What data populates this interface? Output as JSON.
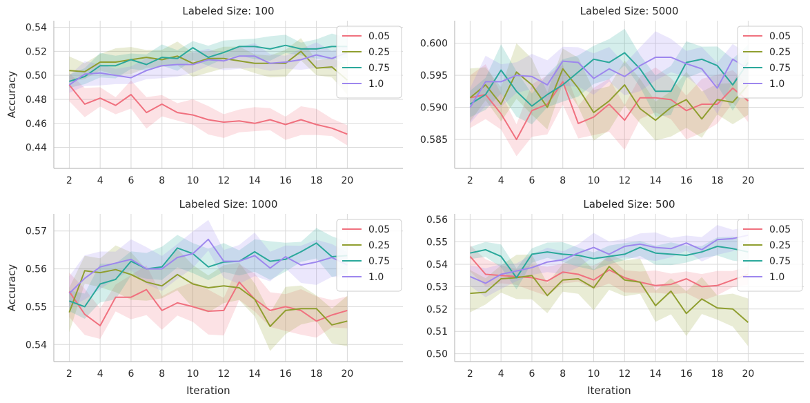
{
  "chart_data": [
    {
      "type": "line",
      "title": "Labeled Size: 100",
      "xlabel": "",
      "ylabel": "Accuracy",
      "x": [
        2,
        3,
        4,
        5,
        6,
        7,
        8,
        9,
        10,
        11,
        12,
        13,
        14,
        15,
        16,
        17,
        18,
        19,
        20
      ],
      "xticks": [
        2,
        4,
        6,
        8,
        10,
        12,
        14,
        16,
        18,
        20
      ],
      "xlim": [
        1.0,
        23.6
      ],
      "ylim": [
        0.4225,
        0.5455
      ],
      "yticks": [
        0.44,
        0.46,
        0.48,
        0.5,
        0.52,
        0.54
      ],
      "ytick_labels": [
        "0.44",
        "0.46",
        "0.48",
        "0.50",
        "0.52",
        "0.54"
      ],
      "grid": true,
      "legend": "upper right",
      "series": [
        {
          "name": "0.05",
          "color": "#f0707e",
          "values": [
            0.492,
            0.476,
            0.481,
            0.475,
            0.484,
            0.469,
            0.476,
            0.469,
            0.467,
            0.463,
            0.461,
            0.462,
            0.46,
            0.463,
            0.459,
            0.463,
            0.459,
            0.456,
            0.451
          ],
          "band": 0.01
        },
        {
          "name": "0.25",
          "color": "#8f9e2f",
          "values": [
            0.504,
            0.503,
            0.511,
            0.511,
            0.513,
            0.515,
            0.513,
            0.516,
            0.51,
            0.514,
            0.514,
            0.512,
            0.51,
            0.51,
            0.51,
            0.52,
            0.506,
            0.507,
            0.496
          ],
          "band": 0.009
        },
        {
          "name": "0.75",
          "color": "#2aa89b",
          "values": [
            0.495,
            0.499,
            0.508,
            0.508,
            0.513,
            0.509,
            0.515,
            0.514,
            0.523,
            0.515,
            0.519,
            0.524,
            0.524,
            0.522,
            0.525,
            0.522,
            0.522,
            0.524,
            0.524
          ],
          "band": 0.008
        },
        {
          "name": "1.0",
          "color": "#9d86ee",
          "values": [
            0.492,
            0.501,
            0.502,
            0.5,
            0.498,
            0.504,
            0.508,
            0.509,
            0.509,
            0.513,
            0.512,
            0.516,
            0.516,
            0.51,
            0.511,
            0.513,
            0.517,
            0.514,
            0.519
          ],
          "band": 0.008
        }
      ]
    },
    {
      "type": "line",
      "title": "Labeled Size: 5000",
      "xlabel": "",
      "ylabel": "",
      "x": [
        2,
        3,
        4,
        5,
        6,
        7,
        8,
        9,
        10,
        11,
        12,
        13,
        14,
        15,
        16,
        17,
        18,
        19,
        20
      ],
      "xticks": [
        2,
        4,
        6,
        8,
        10,
        12,
        14,
        16,
        18,
        20
      ],
      "xlim": [
        1.0,
        23.6
      ],
      "ylim": [
        0.5805,
        0.6035
      ],
      "yticks": [
        0.585,
        0.59,
        0.595,
        0.6
      ],
      "ytick_labels": [
        "0.585",
        "0.590",
        "0.595",
        "0.600"
      ],
      "grid": true,
      "legend": "upper right",
      "series": [
        {
          "name": "0.05",
          "color": "#f0707e",
          "values": [
            0.5915,
            0.592,
            0.589,
            0.585,
            0.5895,
            0.5905,
            0.594,
            0.5875,
            0.5885,
            0.5905,
            0.588,
            0.5915,
            0.5915,
            0.5912,
            0.5895,
            0.5905,
            0.5905,
            0.593,
            0.591
          ],
          "band": 0.0035
        },
        {
          "name": "0.25",
          "color": "#8f9e2f",
          "values": [
            0.5915,
            0.5935,
            0.5905,
            0.5955,
            0.5935,
            0.59,
            0.596,
            0.593,
            0.5892,
            0.591,
            0.5935,
            0.5898,
            0.588,
            0.59,
            0.5912,
            0.5882,
            0.5912,
            0.5908,
            0.5935
          ],
          "band": 0.0035
        },
        {
          "name": "0.75",
          "color": "#2aa89b",
          "values": [
            0.5905,
            0.592,
            0.5958,
            0.5925,
            0.5902,
            0.592,
            0.5935,
            0.5955,
            0.5975,
            0.597,
            0.5985,
            0.596,
            0.5925,
            0.5925,
            0.597,
            0.5975,
            0.5965,
            0.5935,
            0.597
          ],
          "band": 0.003
        },
        {
          "name": "1.0",
          "color": "#9d86ee",
          "values": [
            0.59,
            0.594,
            0.594,
            0.595,
            0.5948,
            0.5935,
            0.5972,
            0.597,
            0.5945,
            0.596,
            0.5948,
            0.5965,
            0.5978,
            0.5978,
            0.5968,
            0.596,
            0.593,
            0.5975,
            0.596
          ],
          "band": 0.003
        }
      ]
    },
    {
      "type": "line",
      "title": "Labeled Size: 1000",
      "xlabel": "Iteration",
      "ylabel": "Accuracy",
      "x": [
        2,
        3,
        4,
        5,
        6,
        7,
        8,
        9,
        10,
        11,
        12,
        13,
        14,
        15,
        16,
        17,
        18,
        19,
        20
      ],
      "xticks": [
        2,
        4,
        6,
        8,
        10,
        12,
        14,
        16,
        18,
        20
      ],
      "xlim": [
        1.0,
        23.6
      ],
      "ylim": [
        0.5355,
        0.5745
      ],
      "yticks": [
        0.54,
        0.55,
        0.56,
        0.57
      ],
      "ytick_labels": [
        "0.54",
        "0.55",
        "0.56",
        "0.57"
      ],
      "grid": true,
      "legend": "upper right",
      "series": [
        {
          "name": "0.05",
          "color": "#f0707e",
          "values": [
            0.554,
            0.548,
            0.545,
            0.5525,
            0.5525,
            0.5545,
            0.549,
            0.551,
            0.55,
            0.5488,
            0.549,
            0.5565,
            0.552,
            0.549,
            0.55,
            0.549,
            0.5462,
            0.5478,
            0.549
          ],
          "band": 0.005
        },
        {
          "name": "0.25",
          "color": "#8f9e2f",
          "values": [
            0.5485,
            0.5595,
            0.559,
            0.5598,
            0.5585,
            0.5565,
            0.5555,
            0.5585,
            0.556,
            0.555,
            0.5555,
            0.555,
            0.552,
            0.5448,
            0.549,
            0.5495,
            0.5495,
            0.5452,
            0.5462
          ],
          "band": 0.005
        },
        {
          "name": "0.75",
          "color": "#2aa89b",
          "values": [
            0.5515,
            0.55,
            0.556,
            0.5572,
            0.562,
            0.56,
            0.5605,
            0.5655,
            0.564,
            0.5605,
            0.5618,
            0.562,
            0.5645,
            0.562,
            0.5625,
            0.5645,
            0.5668,
            0.5632,
            0.5635
          ],
          "band": 0.004
        },
        {
          "name": "1.0",
          "color": "#9d86ee",
          "values": [
            0.5535,
            0.5575,
            0.5605,
            0.5615,
            0.5625,
            0.56,
            0.56,
            0.563,
            0.564,
            0.5678,
            0.562,
            0.562,
            0.5635,
            0.5602,
            0.5632,
            0.561,
            0.5618,
            0.563,
            0.561
          ],
          "band": 0.0045
        }
      ]
    },
    {
      "type": "line",
      "title": "Labeled Size: 500",
      "xlabel": "Iteration",
      "ylabel": "",
      "x": [
        2,
        3,
        4,
        5,
        6,
        7,
        8,
        9,
        10,
        11,
        12,
        13,
        14,
        15,
        16,
        17,
        18,
        19,
        20
      ],
      "xticks": [
        2,
        4,
        6,
        8,
        10,
        12,
        14,
        16,
        18,
        20
      ],
      "xlim": [
        1.0,
        23.6
      ],
      "ylim": [
        0.4965,
        0.5625
      ],
      "yticks": [
        0.5,
        0.51,
        0.52,
        0.53,
        0.54,
        0.55,
        0.56
      ],
      "ytick_labels": [
        "0.50",
        "0.51",
        "0.52",
        "0.53",
        "0.54",
        "0.55",
        "0.56"
      ],
      "grid": true,
      "legend": "upper right",
      "series": [
        {
          "name": "0.05",
          "color": "#f0707e",
          "values": [
            0.5435,
            0.5355,
            0.535,
            0.5345,
            0.534,
            0.5325,
            0.5365,
            0.5355,
            0.533,
            0.5375,
            0.534,
            0.532,
            0.5305,
            0.531,
            0.5335,
            0.53,
            0.5305,
            0.533,
            0.5355
          ],
          "band": 0.005
        },
        {
          "name": "0.25",
          "color": "#8f9e2f",
          "values": [
            0.527,
            0.5275,
            0.5335,
            0.534,
            0.535,
            0.526,
            0.533,
            0.5335,
            0.5295,
            0.539,
            0.533,
            0.532,
            0.5215,
            0.528,
            0.518,
            0.5245,
            0.5205,
            0.52,
            0.514
          ],
          "band": 0.008
        },
        {
          "name": "0.75",
          "color": "#2aa89b",
          "values": [
            0.545,
            0.5465,
            0.5435,
            0.534,
            0.5445,
            0.5455,
            0.5445,
            0.544,
            0.5425,
            0.5435,
            0.5445,
            0.5475,
            0.545,
            0.5445,
            0.544,
            0.5455,
            0.548,
            0.547,
            0.5455
          ],
          "band": 0.004
        },
        {
          "name": "1.0",
          "color": "#9d86ee",
          "values": [
            0.5345,
            0.5315,
            0.5355,
            0.537,
            0.5385,
            0.541,
            0.542,
            0.545,
            0.5475,
            0.5445,
            0.548,
            0.549,
            0.5475,
            0.547,
            0.5495,
            0.5465,
            0.551,
            0.5515,
            0.553
          ],
          "band": 0.005
        }
      ]
    }
  ]
}
